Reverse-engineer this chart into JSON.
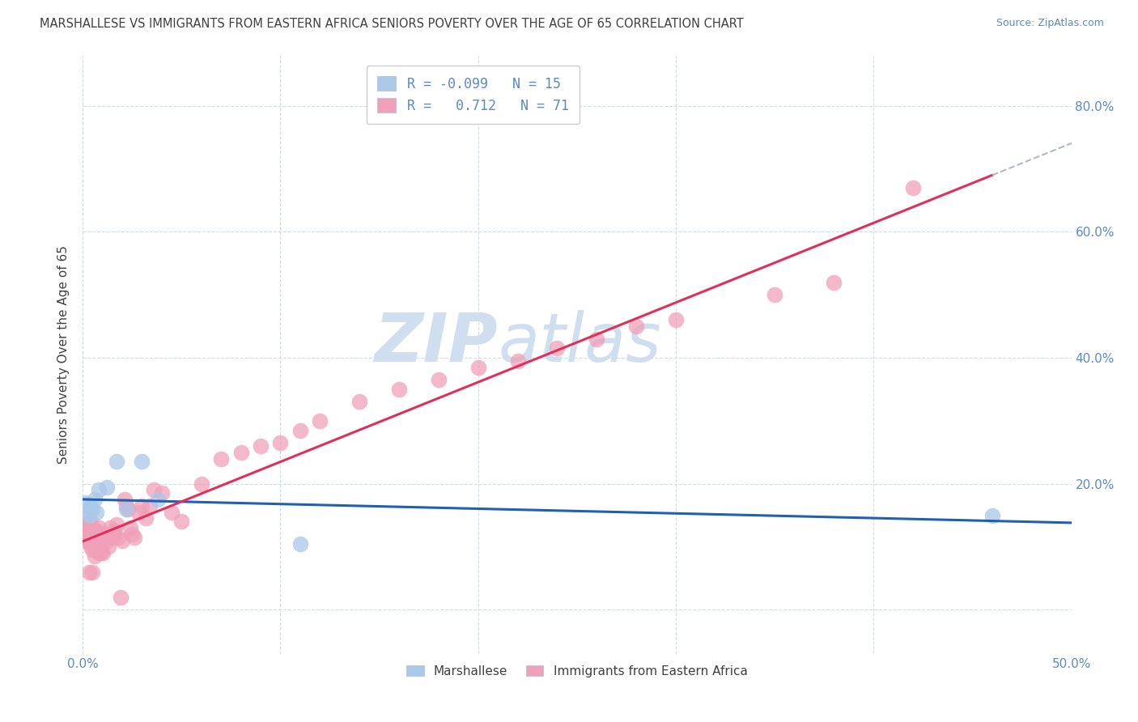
{
  "title": "MARSHALLESE VS IMMIGRANTS FROM EASTERN AFRICA SENIORS POVERTY OVER THE AGE OF 65 CORRELATION CHART",
  "source": "Source: ZipAtlas.com",
  "ylabel": "Seniors Poverty Over the Age of 65",
  "xlabel_marshallese": "Marshallese",
  "xlabel_eastern_africa": "Immigrants from Eastern Africa",
  "xlim": [
    0,
    0.5
  ],
  "ylim": [
    -0.07,
    0.88
  ],
  "xticks_major": [
    0.0,
    0.1,
    0.2,
    0.3,
    0.4,
    0.5
  ],
  "yticks_major": [
    0.0,
    0.2,
    0.4,
    0.6,
    0.8
  ],
  "legend_R_marshallese": "-0.099",
  "legend_N_marshallese": "15",
  "legend_R_eastern_africa": "0.712",
  "legend_N_eastern_africa": "71",
  "color_marshallese": "#aac8e8",
  "color_eastern_africa": "#f0a0b8",
  "line_color_marshallese": "#2060b0",
  "line_color_eastern_africa": "#e0305a",
  "marshallese_x": [
    0.001,
    0.002,
    0.003,
    0.004,
    0.005,
    0.006,
    0.007,
    0.008,
    0.012,
    0.017,
    0.022,
    0.03,
    0.038,
    0.11,
    0.46
  ],
  "marshallese_y": [
    0.17,
    0.155,
    0.15,
    0.165,
    0.16,
    0.175,
    0.155,
    0.19,
    0.195,
    0.235,
    0.16,
    0.235,
    0.175,
    0.105,
    0.15
  ],
  "eastern_africa_x": [
    0.001,
    0.001,
    0.002,
    0.002,
    0.002,
    0.003,
    0.003,
    0.003,
    0.004,
    0.004,
    0.004,
    0.004,
    0.005,
    0.005,
    0.005,
    0.005,
    0.006,
    0.006,
    0.006,
    0.006,
    0.007,
    0.007,
    0.008,
    0.008,
    0.009,
    0.009,
    0.01,
    0.01,
    0.011,
    0.012,
    0.013,
    0.014,
    0.015,
    0.016,
    0.017,
    0.018,
    0.019,
    0.02,
    0.021,
    0.022,
    0.023,
    0.024,
    0.025,
    0.026,
    0.028,
    0.03,
    0.032,
    0.034,
    0.036,
    0.04,
    0.045,
    0.05,
    0.06,
    0.07,
    0.08,
    0.09,
    0.1,
    0.11,
    0.12,
    0.14,
    0.16,
    0.18,
    0.2,
    0.22,
    0.24,
    0.26,
    0.28,
    0.3,
    0.35,
    0.38,
    0.42
  ],
  "eastern_africa_y": [
    0.135,
    0.115,
    0.13,
    0.11,
    0.125,
    0.11,
    0.125,
    0.06,
    0.12,
    0.14,
    0.1,
    0.115,
    0.12,
    0.13,
    0.095,
    0.06,
    0.1,
    0.125,
    0.085,
    0.115,
    0.105,
    0.125,
    0.13,
    0.09,
    0.11,
    0.09,
    0.115,
    0.09,
    0.12,
    0.11,
    0.1,
    0.13,
    0.115,
    0.125,
    0.135,
    0.115,
    0.02,
    0.11,
    0.175,
    0.165,
    0.16,
    0.13,
    0.12,
    0.115,
    0.155,
    0.165,
    0.145,
    0.165,
    0.19,
    0.185,
    0.155,
    0.14,
    0.2,
    0.24,
    0.25,
    0.26,
    0.265,
    0.285,
    0.3,
    0.33,
    0.35,
    0.365,
    0.385,
    0.395,
    0.415,
    0.43,
    0.45,
    0.46,
    0.5,
    0.52,
    0.67
  ],
  "background_color": "#ffffff",
  "grid_color": "#d0dcea",
  "title_color": "#404040",
  "axis_color": "#5a8ac6",
  "watermark_line1": "ZIP",
  "watermark_line2": "atlas",
  "watermark_color": "#d0dff0"
}
